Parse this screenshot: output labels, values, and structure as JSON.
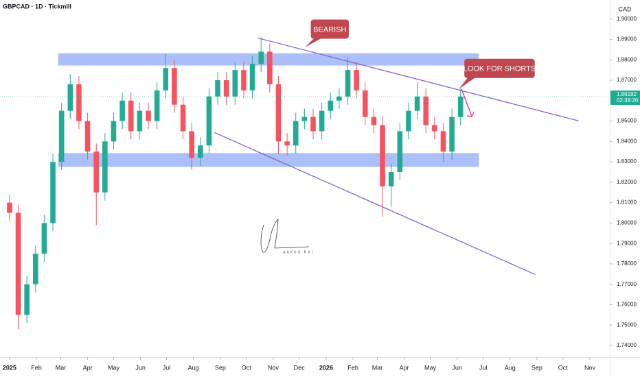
{
  "chart_data": {
    "type": "candlestick",
    "title": "GBPCAD · 1D · Tickmill",
    "currency": "CAD",
    "up_color": "#22ab94",
    "down_color": "#f7525f",
    "x": [
      0,
      10,
      20,
      30,
      40,
      50,
      60,
      70,
      80,
      90,
      100,
      110,
      120,
      130,
      140,
      150,
      160,
      170,
      180,
      190,
      200,
      210,
      220,
      230,
      240,
      250,
      260,
      270,
      280,
      290,
      300,
      310,
      320,
      330,
      340,
      350,
      360,
      370,
      380,
      390,
      400,
      410,
      420,
      430,
      440,
      450,
      460,
      470,
      480,
      490,
      500,
      510,
      520
    ],
    "open": [
      1.81,
      1.805,
      1.755,
      1.77,
      1.785,
      1.8,
      1.83,
      1.855,
      1.868,
      1.85,
      1.835,
      1.815,
      1.84,
      1.85,
      1.86,
      1.845,
      1.855,
      1.85,
      1.865,
      1.876,
      1.858,
      1.845,
      1.832,
      1.838,
      1.862,
      1.87,
      1.862,
      1.875,
      1.865,
      1.878,
      1.884,
      1.868,
      1.84,
      1.838,
      1.85,
      1.852,
      1.845,
      1.855,
      1.86,
      1.862,
      1.875,
      1.865,
      1.852,
      1.848,
      1.818,
      1.825,
      1.845,
      1.855,
      1.862,
      1.848,
      1.845,
      1.835,
      1.852
    ],
    "high": [
      1.814,
      1.809,
      1.774,
      1.789,
      1.804,
      1.834,
      1.859,
      1.873,
      1.872,
      1.854,
      1.839,
      1.844,
      1.854,
      1.864,
      1.864,
      1.859,
      1.859,
      1.869,
      1.883,
      1.88,
      1.862,
      1.849,
      1.842,
      1.866,
      1.874,
      1.874,
      1.879,
      1.879,
      1.882,
      1.891,
      1.888,
      1.872,
      1.844,
      1.854,
      1.856,
      1.856,
      1.859,
      1.864,
      1.866,
      1.881,
      1.879,
      1.869,
      1.856,
      1.852,
      1.829,
      1.849,
      1.859,
      1.869,
      1.866,
      1.852,
      1.849,
      1.856,
      1.866
    ],
    "low": [
      1.801,
      1.748,
      1.751,
      1.766,
      1.781,
      1.796,
      1.826,
      1.851,
      1.846,
      1.831,
      1.799,
      1.811,
      1.836,
      1.846,
      1.841,
      1.841,
      1.846,
      1.846,
      1.861,
      1.854,
      1.841,
      1.826,
      1.828,
      1.834,
      1.858,
      1.858,
      1.858,
      1.861,
      1.861,
      1.874,
      1.864,
      1.834,
      1.833,
      1.834,
      1.846,
      1.841,
      1.841,
      1.851,
      1.856,
      1.858,
      1.861,
      1.848,
      1.844,
      1.803,
      1.808,
      1.821,
      1.841,
      1.851,
      1.844,
      1.841,
      1.83,
      1.831,
      1.848
    ],
    "close": [
      1.805,
      1.755,
      1.77,
      1.785,
      1.8,
      1.83,
      1.855,
      1.868,
      1.85,
      1.835,
      1.815,
      1.84,
      1.85,
      1.86,
      1.845,
      1.855,
      1.85,
      1.865,
      1.876,
      1.858,
      1.845,
      1.832,
      1.838,
      1.862,
      1.87,
      1.862,
      1.875,
      1.865,
      1.878,
      1.884,
      1.868,
      1.84,
      1.838,
      1.85,
      1.852,
      1.845,
      1.855,
      1.86,
      1.862,
      1.875,
      1.865,
      1.852,
      1.848,
      1.818,
      1.825,
      1.845,
      1.855,
      1.862,
      1.848,
      1.845,
      1.835,
      1.852,
      1.862
    ],
    "xlim": [
      -11,
      692
    ],
    "ylim": [
      1.7343,
      1.9093
    ],
    "xticks": [
      {
        "value": 0,
        "label": "2025"
      },
      {
        "value": 31,
        "label": "Feb"
      },
      {
        "value": 59,
        "label": "Mar"
      },
      {
        "value": 90,
        "label": "Apr"
      },
      {
        "value": 120,
        "label": "May"
      },
      {
        "value": 151,
        "label": "Jun"
      },
      {
        "value": 181,
        "label": "Jul"
      },
      {
        "value": 212,
        "label": "Aug"
      },
      {
        "value": 243,
        "label": "Sep"
      },
      {
        "value": 273,
        "label": "Oct"
      },
      {
        "value": 304,
        "label": "Nov"
      },
      {
        "value": 334,
        "label": "Dec"
      },
      {
        "value": 365,
        "label": "2026"
      },
      {
        "value": 396,
        "label": "Feb"
      },
      {
        "value": 424,
        "label": "Mar"
      },
      {
        "value": 455,
        "label": "Apr"
      },
      {
        "value": 485,
        "label": "May"
      },
      {
        "value": 516,
        "label": "Jun"
      },
      {
        "value": 546,
        "label": "Jul"
      },
      {
        "value": 577,
        "label": "Aug"
      },
      {
        "value": 608,
        "label": "Sep"
      },
      {
        "value": 638,
        "label": "Oct"
      },
      {
        "value": 669,
        "label": "Nov"
      }
    ],
    "yticks": [
      {
        "value": 1.74,
        "label": "1.74000"
      },
      {
        "value": 1.75,
        "label": "1.75000"
      },
      {
        "value": 1.76,
        "label": "1.76000"
      },
      {
        "value": 1.77,
        "label": "1.77000"
      },
      {
        "value": 1.78,
        "label": "1.78000"
      },
      {
        "value": 1.79,
        "label": "1.79000"
      },
      {
        "value": 1.8,
        "label": "1.80000"
      },
      {
        "value": 1.81,
        "label": "1.81000"
      },
      {
        "value": 1.82,
        "label": "1.82000"
      },
      {
        "value": 1.83,
        "label": "1.83000"
      },
      {
        "value": 1.84,
        "label": "1.84000"
      },
      {
        "value": 1.85,
        "label": "1.85000"
      },
      {
        "value": 1.86,
        "label": "1.86000"
      },
      {
        "value": 1.87,
        "label": "1.87000"
      },
      {
        "value": 1.88,
        "label": "1.88000"
      },
      {
        "value": 1.89,
        "label": "1.89000"
      },
      {
        "value": 1.9,
        "label": "1.90000"
      }
    ],
    "last_price": 1.86192,
    "countdown": "02:38:20",
    "zones": [
      {
        "x": [
          56,
          541
        ],
        "y": [
          1.8772,
          1.8832
        ],
        "color": "#8fa9f5"
      },
      {
        "x": [
          56,
          541
        ],
        "y": [
          1.8275,
          1.8343
        ],
        "color": "#8fa9f5"
      }
    ],
    "trendlines": [
      {
        "x": [
          286,
          656
        ],
        "y": [
          1.8907,
          1.8501
        ],
        "color": "#8a63c9"
      },
      {
        "x": [
          236,
          606
        ],
        "y": [
          1.8444,
          1.7748
        ],
        "color": "#8a63c9"
      }
    ],
    "arrow": {
      "x": [
        521,
        533
      ],
      "y": [
        1.8657,
        1.8522
      ],
      "color": "#e040b0"
    },
    "callouts": [
      {
        "text": "BEARISH",
        "x": 341,
        "y": 1.8863,
        "color": "#c0474f"
      },
      {
        "text": "LOOK FOR SHORTS",
        "x": 518,
        "y": 1.8657,
        "color": "#c0474f"
      }
    ],
    "watermark": "AAKKO RAI"
  }
}
